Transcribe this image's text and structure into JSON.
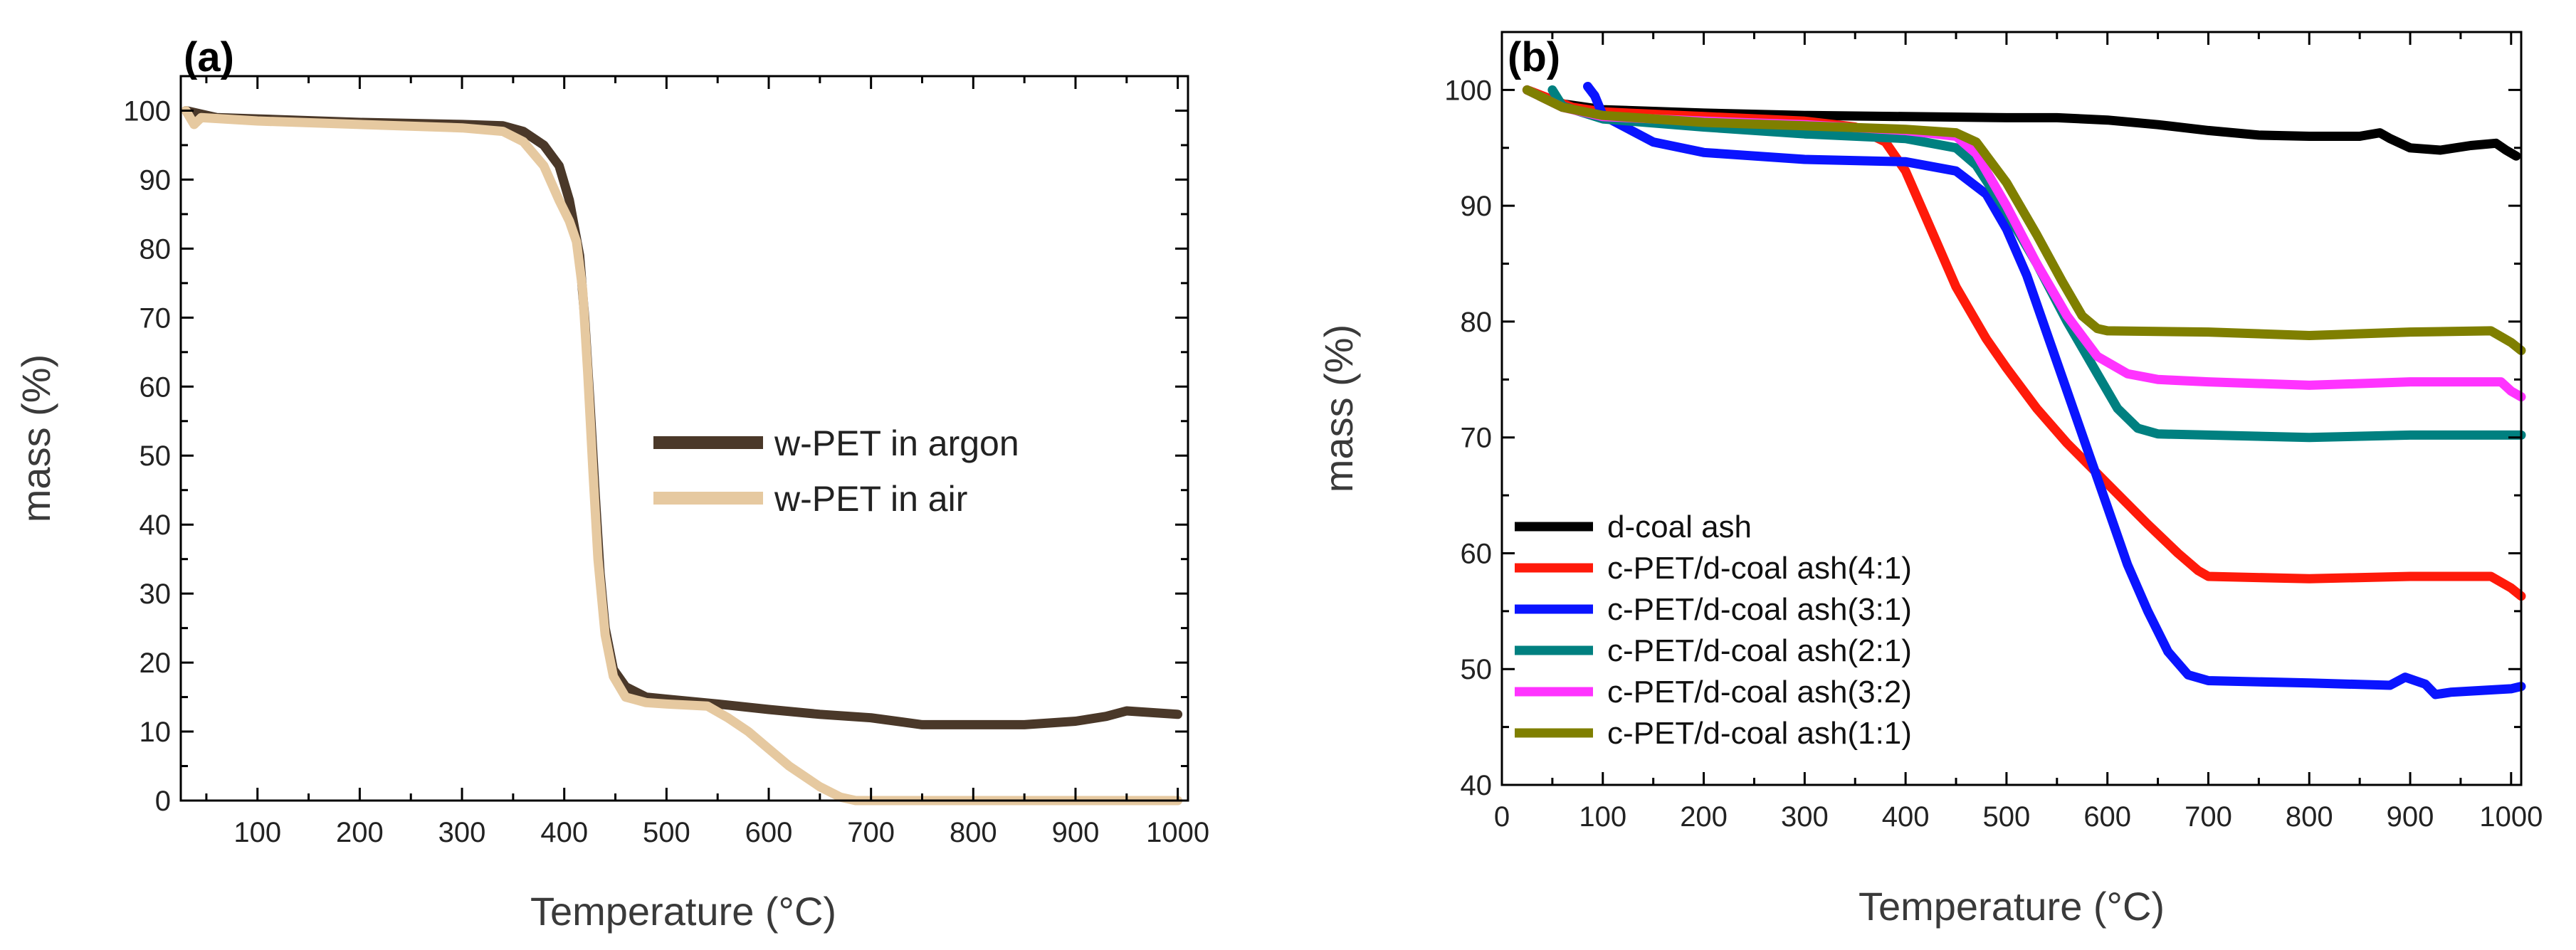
{
  "chart_data": [
    {
      "type": "line",
      "panel_label": "(a)",
      "xlabel": "Temperature (°C)",
      "ylabel": "mass (%)",
      "xlim": [
        25,
        1010
      ],
      "ylim": [
        0,
        105
      ],
      "xticks": [
        100,
        200,
        300,
        400,
        500,
        600,
        700,
        800,
        900,
        1000
      ],
      "yticks": [
        0,
        10,
        20,
        30,
        40,
        50,
        60,
        70,
        80,
        90,
        100
      ],
      "grid": false,
      "legend_position": "center-right",
      "series": [
        {
          "name": "w-PET in argon",
          "color": "#4a3829",
          "points": [
            [
              30,
              100
            ],
            [
              60,
              99
            ],
            [
              100,
              98.8
            ],
            [
              200,
              98.3
            ],
            [
              300,
              98
            ],
            [
              340,
              97.8
            ],
            [
              360,
              97
            ],
            [
              380,
              95
            ],
            [
              395,
              92
            ],
            [
              405,
              87
            ],
            [
              415,
              79
            ],
            [
              420,
              70
            ],
            [
              425,
              58
            ],
            [
              430,
              45
            ],
            [
              435,
              33
            ],
            [
              440,
              25
            ],
            [
              448,
              19
            ],
            [
              460,
              16.5
            ],
            [
              480,
              15
            ],
            [
              500,
              14.7
            ],
            [
              550,
              14
            ],
            [
              600,
              13.2
            ],
            [
              650,
              12.5
            ],
            [
              700,
              12
            ],
            [
              750,
              11
            ],
            [
              800,
              11
            ],
            [
              850,
              11
            ],
            [
              900,
              11.5
            ],
            [
              930,
              12.2
            ],
            [
              950,
              13
            ],
            [
              1000,
              12.5
            ]
          ]
        },
        {
          "name": "w-PET in air",
          "color": "#e6c9a0",
          "points": [
            [
              30,
              100
            ],
            [
              38,
              98
            ],
            [
              45,
              99
            ],
            [
              100,
              98.5
            ],
            [
              200,
              98
            ],
            [
              300,
              97.5
            ],
            [
              340,
              97
            ],
            [
              360,
              95.5
            ],
            [
              380,
              92
            ],
            [
              395,
              87
            ],
            [
              405,
              84
            ],
            [
              412,
              81
            ],
            [
              418,
              74
            ],
            [
              423,
              62
            ],
            [
              428,
              48
            ],
            [
              433,
              35
            ],
            [
              440,
              24
            ],
            [
              448,
              18
            ],
            [
              460,
              15
            ],
            [
              480,
              14.2
            ],
            [
              500,
              14
            ],
            [
              540,
              13.7
            ],
            [
              560,
              12
            ],
            [
              580,
              10
            ],
            [
              600,
              7.5
            ],
            [
              620,
              5
            ],
            [
              650,
              2
            ],
            [
              670,
              0.5
            ],
            [
              685,
              0
            ],
            [
              1000,
              0
            ]
          ]
        }
      ]
    },
    {
      "type": "line",
      "panel_label": "(b)",
      "xlabel": "Temperature (°C)",
      "ylabel": "mass (%)",
      "xlim": [
        0,
        1010
      ],
      "ylim": [
        40,
        105
      ],
      "xticks": [
        0,
        100,
        200,
        300,
        400,
        500,
        600,
        700,
        800,
        900,
        1000
      ],
      "yticks": [
        40,
        50,
        60,
        70,
        80,
        90,
        100
      ],
      "grid": false,
      "legend_position": "lower-left",
      "series": [
        {
          "name": "d-coal ash",
          "color": "#000000",
          "points": [
            [
              25,
              100
            ],
            [
              60,
              98.8
            ],
            [
              100,
              98.3
            ],
            [
              200,
              98
            ],
            [
              300,
              97.8
            ],
            [
              400,
              97.7
            ],
            [
              500,
              97.6
            ],
            [
              550,
              97.6
            ],
            [
              600,
              97.4
            ],
            [
              650,
              97
            ],
            [
              700,
              96.5
            ],
            [
              750,
              96.1
            ],
            [
              800,
              96
            ],
            [
              850,
              96
            ],
            [
              870,
              96.3
            ],
            [
              880,
              95.8
            ],
            [
              900,
              95
            ],
            [
              930,
              94.8
            ],
            [
              960,
              95.2
            ],
            [
              985,
              95.4
            ],
            [
              995,
              94.8
            ],
            [
              1005,
              94.3
            ]
          ]
        },
        {
          "name": "c-PET/d-coal ash(4:1)",
          "color": "#ff1a0a",
          "points": [
            [
              25,
              100
            ],
            [
              70,
              98.5
            ],
            [
              100,
              98.1
            ],
            [
              200,
              97.7
            ],
            [
              300,
              97.3
            ],
            [
              350,
              96.8
            ],
            [
              380,
              95.5
            ],
            [
              400,
              93
            ],
            [
              420,
              89
            ],
            [
              450,
              83
            ],
            [
              480,
              78.5
            ],
            [
              500,
              76
            ],
            [
              530,
              72.5
            ],
            [
              560,
              69.5
            ],
            [
              600,
              66
            ],
            [
              640,
              62.5
            ],
            [
              670,
              60
            ],
            [
              690,
              58.5
            ],
            [
              700,
              58
            ],
            [
              800,
              57.8
            ],
            [
              900,
              58
            ],
            [
              980,
              58
            ],
            [
              1000,
              57
            ],
            [
              1010,
              56.3
            ]
          ]
        },
        {
          "name": "c-PET/d-coal ash(3:1)",
          "color": "#0a14ff",
          "points": [
            [
              85,
              100.3
            ],
            [
              92,
              99.5
            ],
            [
              100,
              97.8
            ],
            [
              150,
              95.5
            ],
            [
              200,
              94.6
            ],
            [
              300,
              94
            ],
            [
              400,
              93.8
            ],
            [
              450,
              93
            ],
            [
              480,
              91
            ],
            [
              500,
              88
            ],
            [
              520,
              84
            ],
            [
              540,
              79
            ],
            [
              560,
              74
            ],
            [
              580,
              69
            ],
            [
              600,
              64
            ],
            [
              620,
              59
            ],
            [
              640,
              55
            ],
            [
              660,
              51.5
            ],
            [
              680,
              49.5
            ],
            [
              700,
              49
            ],
            [
              800,
              48.8
            ],
            [
              880,
              48.6
            ],
            [
              895,
              49.3
            ],
            [
              905,
              49
            ],
            [
              915,
              48.7
            ],
            [
              925,
              47.8
            ],
            [
              940,
              48
            ],
            [
              1000,
              48.3
            ],
            [
              1010,
              48.5
            ]
          ]
        },
        {
          "name": "c-PET/d-coal ash(2:1)",
          "color": "#008080",
          "points": [
            [
              50,
              100
            ],
            [
              60,
              98.6
            ],
            [
              100,
              97.5
            ],
            [
              200,
              96.8
            ],
            [
              300,
              96.2
            ],
            [
              400,
              95.8
            ],
            [
              450,
              95
            ],
            [
              470,
              93.5
            ],
            [
              500,
              89.5
            ],
            [
              530,
              85
            ],
            [
              560,
              80
            ],
            [
              590,
              75.5
            ],
            [
              610,
              72.5
            ],
            [
              630,
              70.8
            ],
            [
              650,
              70.3
            ],
            [
              700,
              70.2
            ],
            [
              800,
              70
            ],
            [
              900,
              70.2
            ],
            [
              1000,
              70.2
            ],
            [
              1010,
              70.2
            ]
          ]
        },
        {
          "name": "c-PET/d-coal ash(3:2)",
          "color": "#ff33ff",
          "points": [
            [
              25,
              100
            ],
            [
              60,
              98.5
            ],
            [
              100,
              97.7
            ],
            [
              200,
              97.3
            ],
            [
              300,
              97
            ],
            [
              400,
              96.5
            ],
            [
              450,
              96
            ],
            [
              470,
              94.5
            ],
            [
              500,
              90
            ],
            [
              530,
              85
            ],
            [
              560,
              80.5
            ],
            [
              590,
              77
            ],
            [
              620,
              75.5
            ],
            [
              650,
              75
            ],
            [
              700,
              74.8
            ],
            [
              800,
              74.5
            ],
            [
              900,
              74.8
            ],
            [
              990,
              74.8
            ],
            [
              1000,
              74
            ],
            [
              1010,
              73.5
            ]
          ]
        },
        {
          "name": "c-PET/d-coal ash(1:1)",
          "color": "#7f7f00",
          "points": [
            [
              25,
              100
            ],
            [
              60,
              98.5
            ],
            [
              100,
              97.8
            ],
            [
              200,
              97.2
            ],
            [
              300,
              96.9
            ],
            [
              400,
              96.6
            ],
            [
              450,
              96.3
            ],
            [
              470,
              95.5
            ],
            [
              500,
              92
            ],
            [
              530,
              87.5
            ],
            [
              555,
              83.5
            ],
            [
              575,
              80.5
            ],
            [
              590,
              79.4
            ],
            [
              600,
              79.2
            ],
            [
              700,
              79.1
            ],
            [
              800,
              78.8
            ],
            [
              900,
              79.1
            ],
            [
              980,
              79.2
            ],
            [
              1000,
              78.2
            ],
            [
              1010,
              77.5
            ]
          ]
        }
      ]
    }
  ]
}
